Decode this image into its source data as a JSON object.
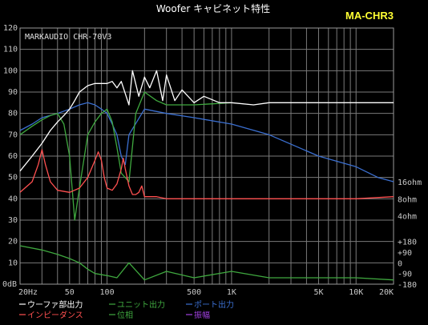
{
  "chart_data": {
    "type": "line",
    "title": "Woofer キャビネット特性",
    "model": "MA-CHR3",
    "brand_label": "MARKAUDIO CHR-70V3",
    "x_scale": "log",
    "xlim": [
      20,
      20000
    ],
    "ylim": [
      0,
      120
    ],
    "y_unit": "0dB",
    "y_ticks": [
      {
        "v": 120,
        "label": "120"
      },
      {
        "v": 110,
        "label": "110"
      },
      {
        "v": 100,
        "label": "100"
      },
      {
        "v": 90,
        "label": "90"
      },
      {
        "v": 80,
        "label": "80"
      },
      {
        "v": 70,
        "label": "70"
      },
      {
        "v": 60,
        "label": "60"
      },
      {
        "v": 50,
        "label": "50"
      },
      {
        "v": 40,
        "label": "40"
      },
      {
        "v": 30,
        "label": "30"
      },
      {
        "v": 20,
        "label": "20"
      },
      {
        "v": 10,
        "label": "10"
      }
    ],
    "x_tick_labels": [
      {
        "v": 20,
        "label": "20Hz"
      },
      {
        "v": 50,
        "label": "50"
      },
      {
        "v": 100,
        "label": "100"
      },
      {
        "v": 500,
        "label": "500"
      },
      {
        "v": 1000,
        "label": "1K"
      },
      {
        "v": 5000,
        "label": "5K"
      },
      {
        "v": 10000,
        "label": "10K"
      },
      {
        "v": 20000,
        "label": "20K"
      }
    ],
    "right_axis_labels": [
      {
        "v": 48,
        "label": "16ohm"
      },
      {
        "v": 40,
        "label": "8ohm"
      },
      {
        "v": 32,
        "label": "4ohm"
      },
      {
        "v": 20,
        "label": "+180"
      },
      {
        "v": 15,
        "label": "+90"
      },
      {
        "v": 10,
        "label": "0"
      },
      {
        "v": 5,
        "label": "-90"
      },
      {
        "v": 0,
        "label": "-180"
      }
    ],
    "grid": true,
    "series": [
      {
        "name": "ウーファ部出力",
        "color": "#ffffff",
        "x": [
          20,
          25,
          30,
          35,
          40,
          45,
          50,
          55,
          60,
          70,
          80,
          90,
          100,
          110,
          120,
          130,
          150,
          160,
          180,
          200,
          220,
          250,
          280,
          300,
          350,
          400,
          500,
          600,
          800,
          1000,
          1500,
          2000,
          3000,
          5000,
          7000,
          10000,
          15000,
          20000
        ],
        "y": [
          53,
          60,
          66,
          72,
          76,
          79,
          82,
          86,
          90,
          93,
          94,
          94,
          94,
          95,
          92,
          95,
          84,
          100,
          88,
          97,
          92,
          100,
          86,
          98,
          86,
          91,
          85,
          88,
          85,
          85,
          84,
          85,
          85,
          85,
          85,
          85,
          85,
          85
        ]
      },
      {
        "name": "インピーダンス",
        "color": "#ff5050",
        "x": [
          20,
          25,
          28,
          30,
          32,
          35,
          40,
          50,
          60,
          70,
          80,
          85,
          90,
          95,
          100,
          110,
          120,
          130,
          135,
          140,
          150,
          160,
          170,
          180,
          190,
          200,
          250,
          300,
          500,
          1000,
          2000,
          5000,
          10000,
          20000
        ],
        "y": [
          43,
          48,
          56,
          63,
          56,
          48,
          44,
          43,
          45,
          50,
          58,
          62,
          58,
          50,
          45,
          44,
          47,
          54,
          59,
          54,
          46,
          42,
          42,
          43,
          46,
          41,
          41,
          40,
          40,
          40,
          40,
          40,
          40,
          41
        ]
      },
      {
        "name": "ユニット出力",
        "color": "#3fa83f",
        "x": [
          20,
          25,
          30,
          35,
          40,
          45,
          50,
          55,
          60,
          65,
          70,
          80,
          90,
          100,
          110,
          120,
          130,
          150,
          170,
          200,
          250,
          300,
          500,
          1000
        ],
        "y": [
          70,
          74,
          77,
          79,
          80,
          75,
          60,
          30,
          45,
          58,
          70,
          76,
          80,
          82,
          76,
          64,
          52,
          48,
          80,
          90,
          86,
          84,
          84,
          85
        ]
      },
      {
        "name": "位相",
        "color": "#3fa83f",
        "x": [
          20,
          30,
          40,
          50,
          60,
          70,
          80,
          100,
          120,
          150,
          200,
          300,
          500,
          1000,
          2000,
          5000,
          10000,
          20000
        ],
        "y": [
          18,
          16,
          14,
          12,
          10,
          7,
          5,
          4,
          3,
          10,
          2,
          6,
          3,
          6,
          3,
          3,
          3,
          2
        ]
      },
      {
        "name": "ポート出力",
        "color": "#3b6fd0",
        "x": [
          20,
          25,
          30,
          40,
          50,
          60,
          70,
          80,
          90,
          100,
          110,
          120,
          130,
          140,
          150,
          200,
          300,
          500,
          1000,
          2000,
          5000,
          10000,
          15000,
          20000
        ],
        "y": [
          72,
          75,
          78,
          80,
          82,
          84,
          85,
          84,
          82,
          80,
          75,
          70,
          60,
          56,
          70,
          82,
          80,
          78,
          75,
          70,
          60,
          55,
          50,
          48
        ]
      },
      {
        "name": "振幅",
        "color": "#a040e0",
        "x": [],
        "y": []
      }
    ],
    "legend": [
      {
        "label": "ウーファ部出力",
        "color": "#ffffff"
      },
      {
        "label": "ユニット出力",
        "color": "#3fa83f"
      },
      {
        "label": "ポート出力",
        "color": "#3b6fd0"
      },
      {
        "label": "インピーダンス",
        "color": "#ff5050"
      },
      {
        "label": "位相",
        "color": "#3fa83f"
      },
      {
        "label": "振幅",
        "color": "#a040e0"
      }
    ]
  }
}
